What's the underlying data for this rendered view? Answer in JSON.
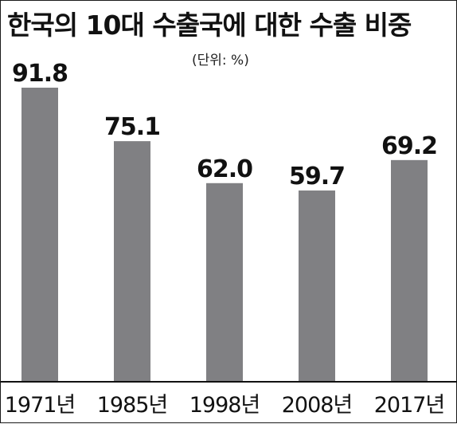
{
  "chart_data": {
    "type": "bar",
    "title": "한국의 10대 수출국에 대한 수출 비중",
    "unit_label": "(단위: %)",
    "categories": [
      "1971년",
      "1985년",
      "1998년",
      "2008년",
      "2017년"
    ],
    "values": [
      91.8,
      75.1,
      62.0,
      59.7,
      69.2
    ],
    "value_labels": [
      "91.8",
      "75.1",
      "62.0",
      "59.7",
      "69.2"
    ],
    "ylim": [
      0,
      100
    ],
    "bar_color": "#808083",
    "grid": false,
    "legend": "none"
  }
}
